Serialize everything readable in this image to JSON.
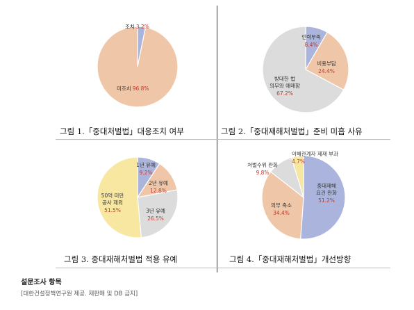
{
  "chart_data": [
    {
      "type": "pie",
      "caption": "그림 1.「중대처벌법」대응조치 여부",
      "slices": [
        {
          "label": "조치",
          "value": 3.2,
          "value_label": "3.2%",
          "color": "#aab4dc"
        },
        {
          "label": "미조치",
          "value": 96.8,
          "value_label": "96.8%",
          "color": "#efc6a8"
        }
      ]
    },
    {
      "type": "pie",
      "caption": "그림 2.「중대재해처벌법」준비 미흡 사유",
      "slices": [
        {
          "label": "인력부족",
          "value": 8.4,
          "value_label": "8.4%",
          "color": "#aab4dc"
        },
        {
          "label": "비용부담",
          "value": 24.4,
          "value_label": "24.4%",
          "color": "#efc6a8"
        },
        {
          "label": "방대한 법\n의무와 애매함",
          "value": 67.2,
          "value_label": "67.2%",
          "color": "#dcdcdc"
        }
      ]
    },
    {
      "type": "pie",
      "caption": "그림 3. 중대재해처벌법 적용 유예",
      "slices": [
        {
          "label": "1년 유예",
          "value": 9.2,
          "value_label": "9.2%",
          "color": "#aab4dc"
        },
        {
          "label": "2년 유예",
          "value": 12.8,
          "value_label": "12.8%",
          "color": "#efc6a8"
        },
        {
          "label": "3년 유예",
          "value": 26.5,
          "value_label": "26.5%",
          "color": "#dcdcdc"
        },
        {
          "label": "50억 미만\n공사 제외",
          "value": 51.5,
          "value_label": "51.5%",
          "color": "#f7e7a0"
        }
      ]
    },
    {
      "type": "pie",
      "caption": "그림 4.「중대재해처벌법」개선방향",
      "slices": [
        {
          "label": "중대재해\n요건 완화",
          "value": 51.2,
          "value_label": "51.2%",
          "color": "#aab4dc"
        },
        {
          "label": "의무 축소",
          "value": 34.4,
          "value_label": "34.4%",
          "color": "#efc6a8"
        },
        {
          "label": "처벌수위 완화",
          "value": 9.8,
          "value_label": "9.8%",
          "color": "#dcdcdc"
        },
        {
          "label": "이해관계자 제재 부과",
          "value": 4.7,
          "value_label": "4.7%",
          "color": "#f7e7a0"
        }
      ]
    }
  ],
  "footer": {
    "title": "설문조사 항목",
    "note": "[대한건설정책연구원 제공. 재판매 및 DB 금지]"
  }
}
